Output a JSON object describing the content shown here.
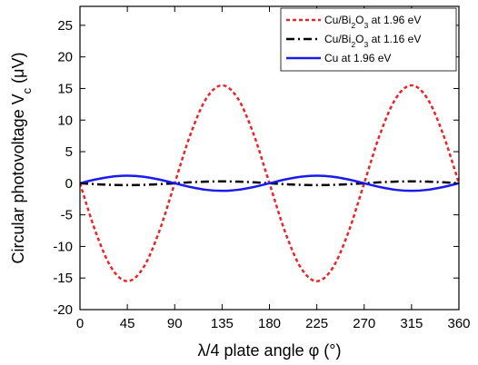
{
  "chart_data": {
    "type": "line",
    "x": [
      0,
      15,
      30,
      45,
      60,
      75,
      90,
      105,
      120,
      135,
      150,
      165,
      180,
      195,
      210,
      225,
      240,
      255,
      270,
      285,
      300,
      315,
      330,
      345,
      360
    ],
    "xlabel": {
      "pre": "λ/4 plate angle φ (",
      "unit": "°",
      "post": ")"
    },
    "ylabel": {
      "pre": "Circular photovoltage V",
      "sub": "c",
      "post": " (μV)"
    },
    "xlim": [
      0,
      360
    ],
    "ylim": [
      -20,
      28
    ],
    "xticks": [
      0,
      45,
      90,
      135,
      180,
      225,
      270,
      315,
      360
    ],
    "yticks": [
      -20,
      -15,
      -10,
      -5,
      0,
      5,
      10,
      15,
      20,
      25
    ],
    "grid": false,
    "legend_position": "top-right",
    "series": [
      {
        "legend": {
          "pre": "Cu/Bi",
          "sub1": "2",
          "mid": "O",
          "sub2": "3",
          "post": " at 1.96 eV"
        },
        "color": "#e8262a",
        "dash": "dotted",
        "values": [
          0,
          -7.75,
          -13.42,
          -15.5,
          -13.42,
          -7.75,
          0,
          7.75,
          13.42,
          15.5,
          13.42,
          7.75,
          0,
          -7.75,
          -13.42,
          -15.5,
          -13.42,
          -7.75,
          0,
          7.75,
          13.42,
          15.5,
          13.42,
          7.75,
          0
        ]
      },
      {
        "legend": {
          "pre": "Cu/Bi",
          "sub1": "2",
          "mid": "O",
          "sub2": "3",
          "post": " at 1.16 eV"
        },
        "color": "#000000",
        "dash": "dash-dot",
        "values": [
          0,
          -0.15,
          -0.26,
          -0.3,
          -0.26,
          -0.15,
          0,
          0.15,
          0.26,
          0.3,
          0.26,
          0.15,
          0,
          -0.15,
          -0.26,
          -0.3,
          -0.26,
          -0.15,
          0,
          0.15,
          0.26,
          0.3,
          0.26,
          0.15,
          0
        ]
      },
      {
        "legend": {
          "pre": "Cu at 1.96 eV"
        },
        "color": "#1a1aee",
        "dash": "solid",
        "values": [
          0,
          0.6,
          1.04,
          1.2,
          1.04,
          0.6,
          0,
          -0.6,
          -1.04,
          -1.2,
          -1.04,
          -0.6,
          0,
          0.6,
          1.04,
          1.2,
          1.04,
          0.6,
          0,
          -0.6,
          -1.04,
          -1.2,
          -1.04,
          -0.6,
          0
        ]
      }
    ]
  }
}
